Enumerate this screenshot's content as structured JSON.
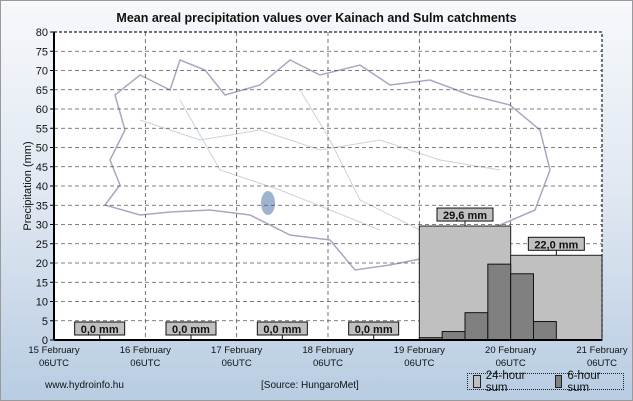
{
  "chart_data": {
    "type": "bar",
    "title": "Mean areal precipitation values over Kainach and Sulm catchments",
    "ylabel": "Precipitation (mm)",
    "xlabel": "",
    "ylim": [
      0,
      80
    ],
    "yticks": [
      0,
      5,
      10,
      15,
      20,
      25,
      30,
      35,
      40,
      45,
      50,
      55,
      60,
      65,
      70,
      75,
      80
    ],
    "xticks": [
      {
        "line1": "15 February",
        "line2": "06UTC"
      },
      {
        "line1": "16 February",
        "line2": "06UTC"
      },
      {
        "line1": "17 February",
        "line2": "06UTC"
      },
      {
        "line1": "18 February",
        "line2": "06UTC"
      },
      {
        "line1": "19 February",
        "line2": "06UTC"
      },
      {
        "line1": "20 February",
        "line2": "06UTC"
      },
      {
        "line1": "21 February",
        "line2": "06UTC"
      }
    ],
    "grid": true,
    "legend_position": "bottom-right",
    "series": [
      {
        "name": "24-hour sum",
        "color": "#c0c0c0",
        "unit": "days from 15 February 06UTC",
        "bars": [
          {
            "start": 0,
            "value": 0.0,
            "label": "0,0 mm"
          },
          {
            "start": 1,
            "value": 0.0,
            "label": "0,0 mm"
          },
          {
            "start": 2,
            "value": 0.0,
            "label": "0,0 mm"
          },
          {
            "start": 3,
            "value": 0.0,
            "label": "0,0 mm"
          },
          {
            "start": 4,
            "value": 29.6,
            "label": "29,6 mm"
          },
          {
            "start": 5,
            "value": 22.0,
            "label": "22,0 mm"
          }
        ]
      },
      {
        "name": "6-hour sum",
        "color": "#808080",
        "times": [
          "19 Feb 06UTC",
          "19 Feb 12UTC",
          "19 Feb 18UTC",
          "20 Feb 00UTC",
          "20 Feb 06UTC",
          "20 Feb 12UTC"
        ],
        "values": [
          0.6,
          2.2,
          7.1,
          19.7,
          17.2,
          4.8
        ]
      }
    ]
  },
  "footer": {
    "website": "www.hydroinfo.hu",
    "source": "[Source: HungaroMet]"
  },
  "legend": {
    "item1": "24-hour sum",
    "item2": "6-hour sum"
  }
}
